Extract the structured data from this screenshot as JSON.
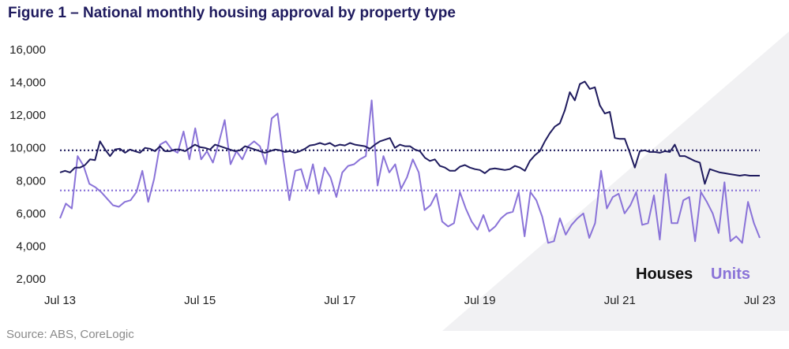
{
  "title": "Figure 1 – National monthly housing approval by property type",
  "source": "Source: ABS, CoreLogic",
  "colors": {
    "houses": "#1f1b5e",
    "units": "#8a73d8",
    "title": "#1f1b5e",
    "legend_houses": "#111111"
  },
  "chart_data": {
    "type": "line",
    "title": "Figure 1 – National monthly housing approval by property type",
    "xlabel": "",
    "ylabel": "",
    "x_range": [
      "2013-07",
      "2023-07"
    ],
    "x_ticks": [
      "Jul 13",
      "Jul 15",
      "Jul 17",
      "Jul 19",
      "Jul 21",
      "Jul 23"
    ],
    "ylim": [
      2000,
      16000
    ],
    "y_ticks": [
      "2,000",
      "4,000",
      "6,000",
      "8,000",
      "10,000",
      "12,000",
      "14,000",
      "16,000"
    ],
    "grid": false,
    "legend_position": "bottom-right",
    "reference_lines": [
      {
        "series": "Houses",
        "value": 9850
      },
      {
        "series": "Units",
        "value": 7400
      }
    ],
    "series": [
      {
        "name": "Houses",
        "start": "2013-07",
        "values": [
          8500,
          8600,
          8500,
          8800,
          8800,
          8950,
          9300,
          9250,
          10400,
          9900,
          9500,
          9900,
          9950,
          9700,
          9900,
          9800,
          9700,
          10000,
          9950,
          9800,
          10100,
          9800,
          9800,
          9900,
          9900,
          9800,
          10000,
          10200,
          10050,
          10000,
          9900,
          10200,
          10100,
          10000,
          9900,
          9800,
          9850,
          10100,
          10000,
          9900,
          9800,
          9700,
          9800,
          9900,
          9850,
          9750,
          9800,
          9700,
          9800,
          9950,
          10150,
          10200,
          10300,
          10200,
          10300,
          10100,
          10200,
          10150,
          10300,
          10200,
          10150,
          10100,
          9950,
          10200,
          10400,
          10500,
          10600,
          10000,
          10200,
          10100,
          10100,
          9900,
          9800,
          9400,
          9200,
          9300,
          8900,
          8800,
          8600,
          8600,
          8850,
          8950,
          8800,
          8700,
          8650,
          8450,
          8700,
          8750,
          8700,
          8650,
          8700,
          8900,
          8800,
          8600,
          9200,
          9550,
          9800,
          10400,
          10900,
          11300,
          11500,
          12300,
          13400,
          12900,
          13900,
          14050,
          13600,
          13700,
          12600,
          12100,
          12200,
          10600,
          10550,
          10550,
          9700,
          8800,
          9800,
          9850,
          9750,
          9750,
          9700,
          9800,
          9750,
          10200,
          9500,
          9500,
          9350,
          9200,
          9100,
          7800,
          8700,
          8600,
          8500,
          8450,
          8400,
          8350,
          8300,
          8350,
          8300,
          8300,
          8300
        ]
      },
      {
        "name": "Units",
        "start": "2013-07",
        "values": [
          5700,
          6600,
          6300,
          9500,
          8900,
          7800,
          7600,
          7300,
          6900,
          6500,
          6400,
          6700,
          6800,
          7300,
          8600,
          6700,
          8100,
          10200,
          10400,
          9900,
          9700,
          11000,
          9300,
          11200,
          9300,
          9800,
          9100,
          10300,
          11700,
          9000,
          9800,
          9300,
          10100,
          10400,
          10100,
          9000,
          11800,
          12100,
          9300,
          6800,
          8600,
          8700,
          7500,
          9000,
          7200,
          8800,
          8200,
          7000,
          8500,
          8900,
          9000,
          9300,
          9500,
          12900,
          7700,
          9500,
          8500,
          9000,
          7500,
          8200,
          9300,
          8500,
          6200,
          6500,
          7200,
          5500,
          5200,
          5400,
          7300,
          6300,
          5500,
          5000,
          5900,
          4900,
          5200,
          5700,
          6000,
          6100,
          7300,
          4600,
          7300,
          6800,
          5800,
          4200,
          4300,
          5700,
          4700,
          5300,
          5700,
          6000,
          4500,
          5400,
          8600,
          6300,
          7000,
          7200,
          6000,
          6500,
          7300,
          5300,
          5400,
          7100,
          4400,
          8400,
          5400,
          5400,
          6800,
          7000,
          4300,
          7300,
          6700,
          6000,
          4800,
          7900,
          4300,
          4600,
          4200,
          6700,
          5400,
          4500
        ]
      }
    ]
  },
  "legend": {
    "houses_label": "Houses",
    "units_label": "Units"
  }
}
